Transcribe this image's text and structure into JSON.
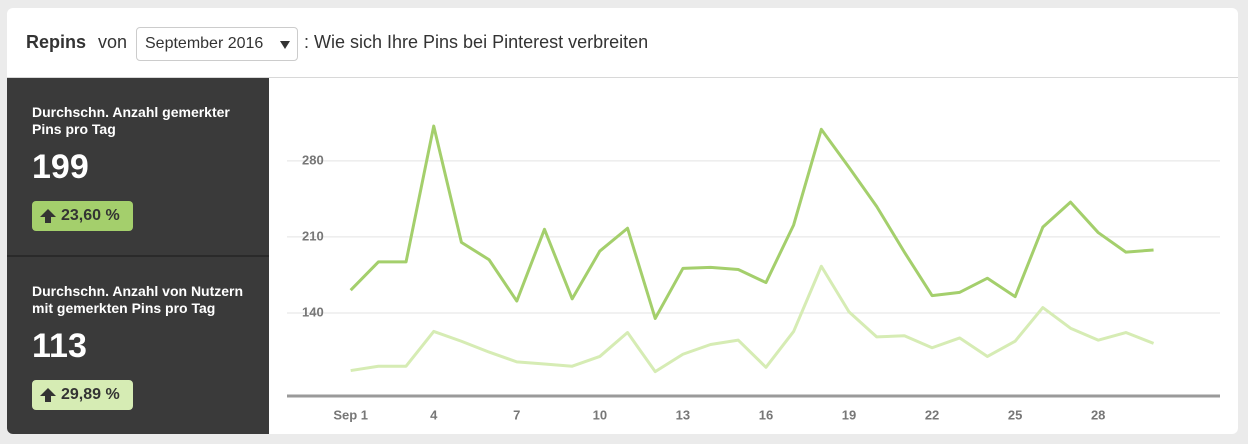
{
  "header": {
    "title": "Repins",
    "connector": "von",
    "period": "September 2016",
    "subtitle": ": Wie sich Ihre Pins bei Pinterest verbreiten"
  },
  "stats": [
    {
      "label": "Durchschn. Anzahl gemerkter Pins pro Tag",
      "value": 199,
      "change": "23,60 %",
      "color": "#a4cf6c"
    },
    {
      "label": "Durchschn. Anzahl von Nutzern mit gemerkten Pins pro Tag",
      "value": 113,
      "change": "29,89 %",
      "color": "#d6ecb4"
    }
  ],
  "chart_data": {
    "type": "line",
    "x": [
      1,
      2,
      3,
      4,
      5,
      6,
      7,
      8,
      9,
      10,
      11,
      12,
      13,
      14,
      15,
      16,
      17,
      18,
      19,
      20,
      21,
      22,
      23,
      24,
      25,
      26,
      27,
      28,
      29,
      30
    ],
    "series": [
      {
        "color": "#a4cf6c",
        "values": [
          161,
          187,
          187,
          312,
          205,
          189,
          151,
          217,
          153,
          197,
          218,
          135,
          181,
          182,
          180,
          168,
          221,
          309,
          274,
          238,
          196,
          156,
          159,
          172,
          155,
          219,
          242,
          214,
          196,
          198
        ]
      },
      {
        "color": "#d6ecb4",
        "values": [
          87,
          91,
          91,
          123,
          114,
          104,
          95,
          93,
          91,
          100,
          122,
          86,
          102,
          111,
          115,
          90,
          123,
          183,
          141,
          118,
          119,
          108,
          117,
          100,
          114,
          145,
          126,
          115,
          122,
          112
        ]
      }
    ],
    "xlim": [
      -1.3,
      32.4
    ],
    "xticks": [
      {
        "value": 1,
        "label": "Sep 1"
      },
      4,
      7,
      10,
      13,
      16,
      19,
      22,
      25,
      28
    ],
    "ylim": [
      63.6,
      336
    ],
    "yticks": [
      140,
      210,
      280
    ],
    "grid": true
  }
}
